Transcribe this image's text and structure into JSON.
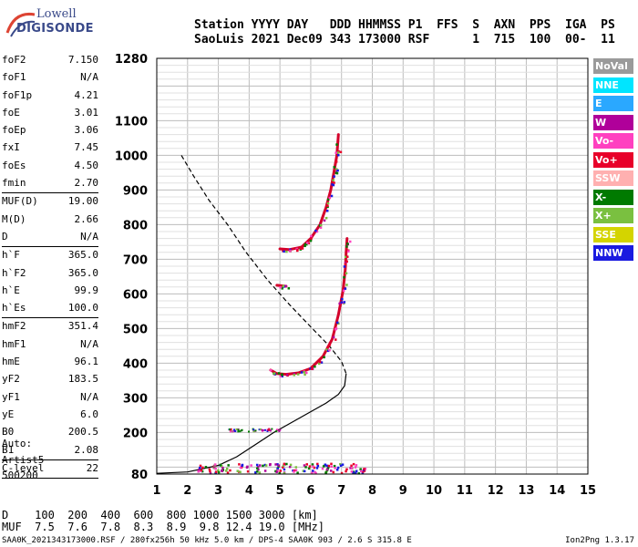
{
  "logo": {
    "line1": "Lowell",
    "line2": "DIGISONDE"
  },
  "header": {
    "line1": "Station YYYY DAY   DDD HHMMSS P1  FFS  S  AXN  PPS  IGA  PS",
    "line2": "SaoLuis 2021 Dec09 343 173000 RSF      1  715  100  00-  11"
  },
  "params": [
    [
      {
        "k": "foF2",
        "v": "7.150"
      },
      {
        "k": "foF1",
        "v": "N/A"
      },
      {
        "k": "foF1p",
        "v": "4.21"
      },
      {
        "k": "foE",
        "v": "3.01"
      },
      {
        "k": "foEp",
        "v": "3.06"
      },
      {
        "k": "fxI",
        "v": "7.45"
      },
      {
        "k": "foEs",
        "v": "4.50"
      },
      {
        "k": "fmin",
        "v": "2.70"
      }
    ],
    [
      {
        "k": "MUF(D)",
        "v": "19.00"
      },
      {
        "k": "M(D)",
        "v": "2.66"
      },
      {
        "k": "D",
        "v": "N/A"
      }
    ],
    [
      {
        "k": "h`F",
        "v": "365.0"
      },
      {
        "k": "h`F2",
        "v": "365.0"
      },
      {
        "k": "h`E",
        "v": "99.9"
      },
      {
        "k": "h`Es",
        "v": "100.0"
      }
    ],
    [
      {
        "k": "hmF2",
        "v": "351.4"
      },
      {
        "k": "hmF1",
        "v": "N/A"
      },
      {
        "k": "hmE",
        "v": "96.1"
      },
      {
        "k": "yF2",
        "v": "183.5"
      },
      {
        "k": "yF1",
        "v": "N/A"
      },
      {
        "k": "yE",
        "v": "6.0"
      },
      {
        "k": "B0",
        "v": "200.5"
      },
      {
        "k": "B1",
        "v": "2.08"
      }
    ],
    [
      {
        "k": "C-level",
        "v": "22"
      }
    ]
  ],
  "auto": {
    "l1": "Auto:",
    "l2": "Artist5",
    "l3": "500200"
  },
  "legend": [
    {
      "label": "NoVal",
      "color": "#9a9a9a"
    },
    {
      "label": "NNE",
      "color": "#00e5ff"
    },
    {
      "label": "E",
      "color": "#2aa8ff"
    },
    {
      "label": "W",
      "color": "#b0009a"
    },
    {
      "label": "Vo-",
      "color": "#ff40c0"
    },
    {
      "label": "Vo+",
      "color": "#e8002a"
    },
    {
      "label": "SSW",
      "color": "#ffb0b0"
    },
    {
      "label": "X-",
      "color": "#007a00"
    },
    {
      "label": "X+",
      "color": "#7ac040"
    },
    {
      "label": "SSE",
      "color": "#d4d400"
    },
    {
      "label": "NNW",
      "color": "#1a1ae0"
    }
  ],
  "muf_table": {
    "d_row": "D    100  200  400  600  800 1000 1500 3000 [km]",
    "m_row": "MUF  7.5  7.6  7.8  8.3  8.9  9.8 12.4 19.0 [MHz]"
  },
  "footer": {
    "left": "SAA0K_2021343173000.RSF / 280fx256h 50 kHz 5.0 km / DPS-4 SAA0K 903 / 2.6 S 315.8 E",
    "right": "Ion2Png 1.3.17"
  },
  "chart_data": {
    "type": "scatter",
    "title": "",
    "xlabel": "",
    "ylabel": "",
    "xlim": [
      1,
      15
    ],
    "ylim": [
      80,
      1280
    ],
    "x_ticks": [
      "1",
      "2",
      "3",
      "4",
      "5",
      "6",
      "7",
      "8",
      "9",
      "10",
      "11",
      "12",
      "13",
      "14",
      "15"
    ],
    "y_ticks": [
      {
        "v": 80,
        "label": "80"
      },
      {
        "v": 200,
        "label": "200"
      },
      {
        "v": 300,
        "label": "300"
      },
      {
        "v": 400,
        "label": "400"
      },
      {
        "v": 500,
        "label": "500"
      },
      {
        "v": 600,
        "label": "600"
      },
      {
        "v": 700,
        "label": "700"
      },
      {
        "v": 800,
        "label": "800"
      },
      {
        "v": 900,
        "label": "900"
      },
      {
        "v": 1000,
        "label": "1000"
      },
      {
        "v": 1100,
        "label": "1100"
      },
      {
        "v": 1280,
        "label": "1280"
      }
    ],
    "series": [
      {
        "style": "dashed",
        "x": [
          1.8,
          2.2,
          2.7,
          3.3,
          3.9,
          4.6,
          5.3,
          6.0,
          6.6,
          7.0,
          7.15
        ],
        "y": [
          1000,
          940,
          870,
          800,
          720,
          640,
          570,
          505,
          450,
          405,
          370
        ]
      },
      {
        "style": "solid",
        "x": [
          1.0,
          2.0,
          3.0,
          3.6,
          4.2,
          4.8,
          5.4,
          6.0,
          6.5,
          6.9,
          7.1,
          7.15
        ],
        "y": [
          82,
          86,
          105,
          130,
          165,
          200,
          230,
          260,
          285,
          310,
          335,
          370
        ]
      },
      {
        "style": "trace_red",
        "x": [
          4.7,
          4.9,
          5.2,
          5.6,
          6.0,
          6.4,
          6.7,
          6.9,
          7.05,
          7.12,
          7.15,
          7.18
        ],
        "y": [
          380,
          370,
          368,
          372,
          385,
          420,
          470,
          540,
          610,
          670,
          720,
          760
        ]
      },
      {
        "style": "trace_red",
        "x": [
          5.0,
          5.3,
          5.7,
          6.0,
          6.3,
          6.5,
          6.65,
          6.75,
          6.85,
          6.9
        ],
        "y": [
          730,
          728,
          735,
          760,
          800,
          850,
          900,
          950,
          1000,
          1060
        ]
      },
      {
        "style": "trace_red",
        "x": [
          4.9,
          5.2
        ],
        "y": [
          625,
          622
        ]
      }
    ]
  }
}
